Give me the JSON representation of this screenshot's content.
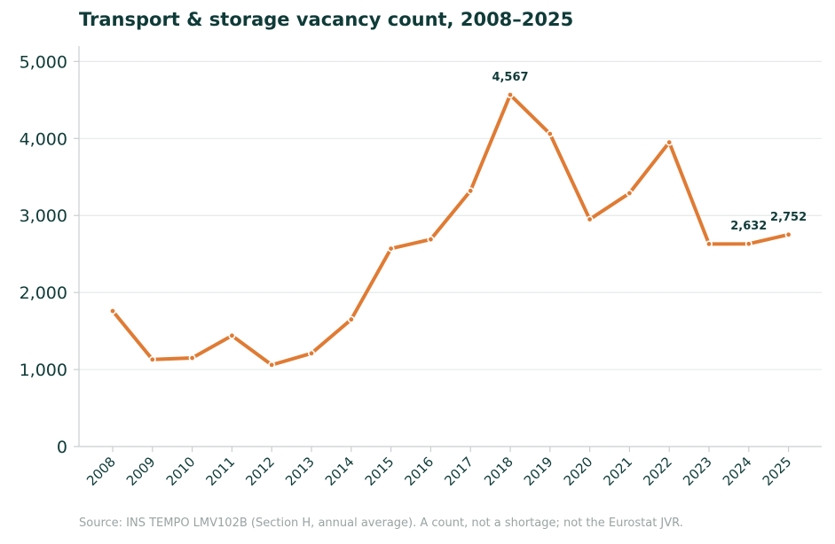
{
  "chart_data": {
    "type": "line",
    "title": "Transport & storage vacancy count, 2008–2025",
    "xlabel": "",
    "ylabel": "",
    "x": [
      "2008",
      "2009",
      "2010",
      "2011",
      "2012",
      "2013",
      "2014",
      "2015",
      "2016",
      "2017",
      "2018",
      "2019",
      "2020",
      "2021",
      "2022",
      "2023",
      "2024",
      "2025"
    ],
    "y_ticks": [
      "0",
      "1,000",
      "2,000",
      "3,000",
      "4,000",
      "5,000"
    ],
    "ylim": [
      0,
      5200
    ],
    "series": [
      {
        "values": [
          1760,
          1130,
          1150,
          1440,
          1060,
          1210,
          1650,
          2570,
          2690,
          3320,
          4567,
          4060,
          2950,
          3290,
          3950,
          2630,
          2632,
          2752
        ]
      }
    ],
    "annotations": [
      {
        "x": "2018",
        "text": "4,567"
      },
      {
        "x": "2024",
        "text": "2,632"
      },
      {
        "x": "2025",
        "text": "2,752"
      }
    ],
    "grid": "horizontal",
    "line_color": "#e07b34",
    "axis_color": "#c9cfcf",
    "grid_color": "#e6e9e9",
    "text_color": "#0f3b38",
    "source": "Source: INS TEMPO LMV102B (Section H, annual average). A count, not a shortage; not the Eurostat JVR."
  }
}
